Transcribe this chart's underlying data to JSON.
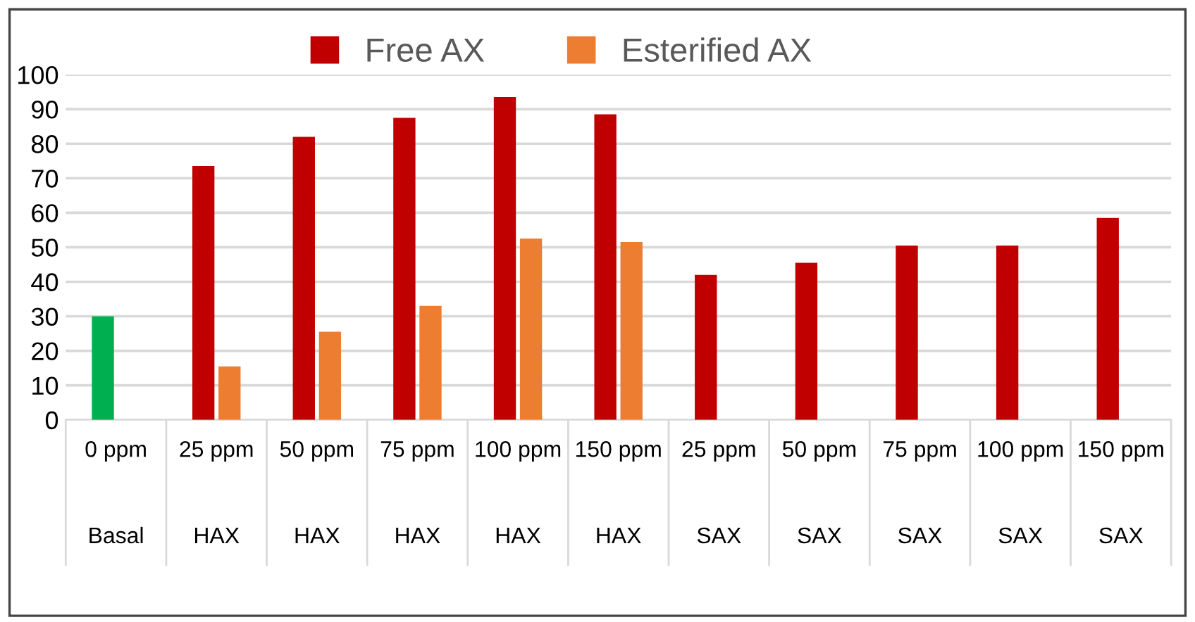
{
  "chart_data": {
    "type": "bar",
    "categories": [
      "0 ppm\nBasal",
      "25 ppm\nHAX",
      "50 ppm\nHAX",
      "75 ppm\nHAX",
      "100 ppm\nHAX",
      "150 ppm\nHAX",
      "25 ppm\nSAX",
      "50 ppm\nSAX",
      "75 ppm\nSAX",
      "100 ppm\nSAX",
      "150 ppm\nSAX"
    ],
    "series": [
      {
        "name": "Free AX",
        "color": "#c00000",
        "colors": [
          "#00b050",
          "#c00000",
          "#c00000",
          "#c00000",
          "#c00000",
          "#c00000",
          "#c00000",
          "#c00000",
          "#c00000",
          "#c00000",
          "#c00000"
        ],
        "values": [
          30,
          73.5,
          82,
          87.5,
          93.5,
          88.5,
          42,
          45.5,
          50.5,
          50.5,
          58.5
        ]
      },
      {
        "name": "Esterified AX",
        "color": "#ed7d31",
        "values": [
          0,
          15.5,
          25.5,
          33,
          52.5,
          51.5,
          0,
          0,
          0,
          0,
          0
        ]
      }
    ],
    "ylim": [
      0,
      100
    ],
    "yticks": [
      0,
      10,
      20,
      30,
      40,
      50,
      60,
      70,
      80,
      90,
      100
    ],
    "grid": "y",
    "legend": "top"
  }
}
